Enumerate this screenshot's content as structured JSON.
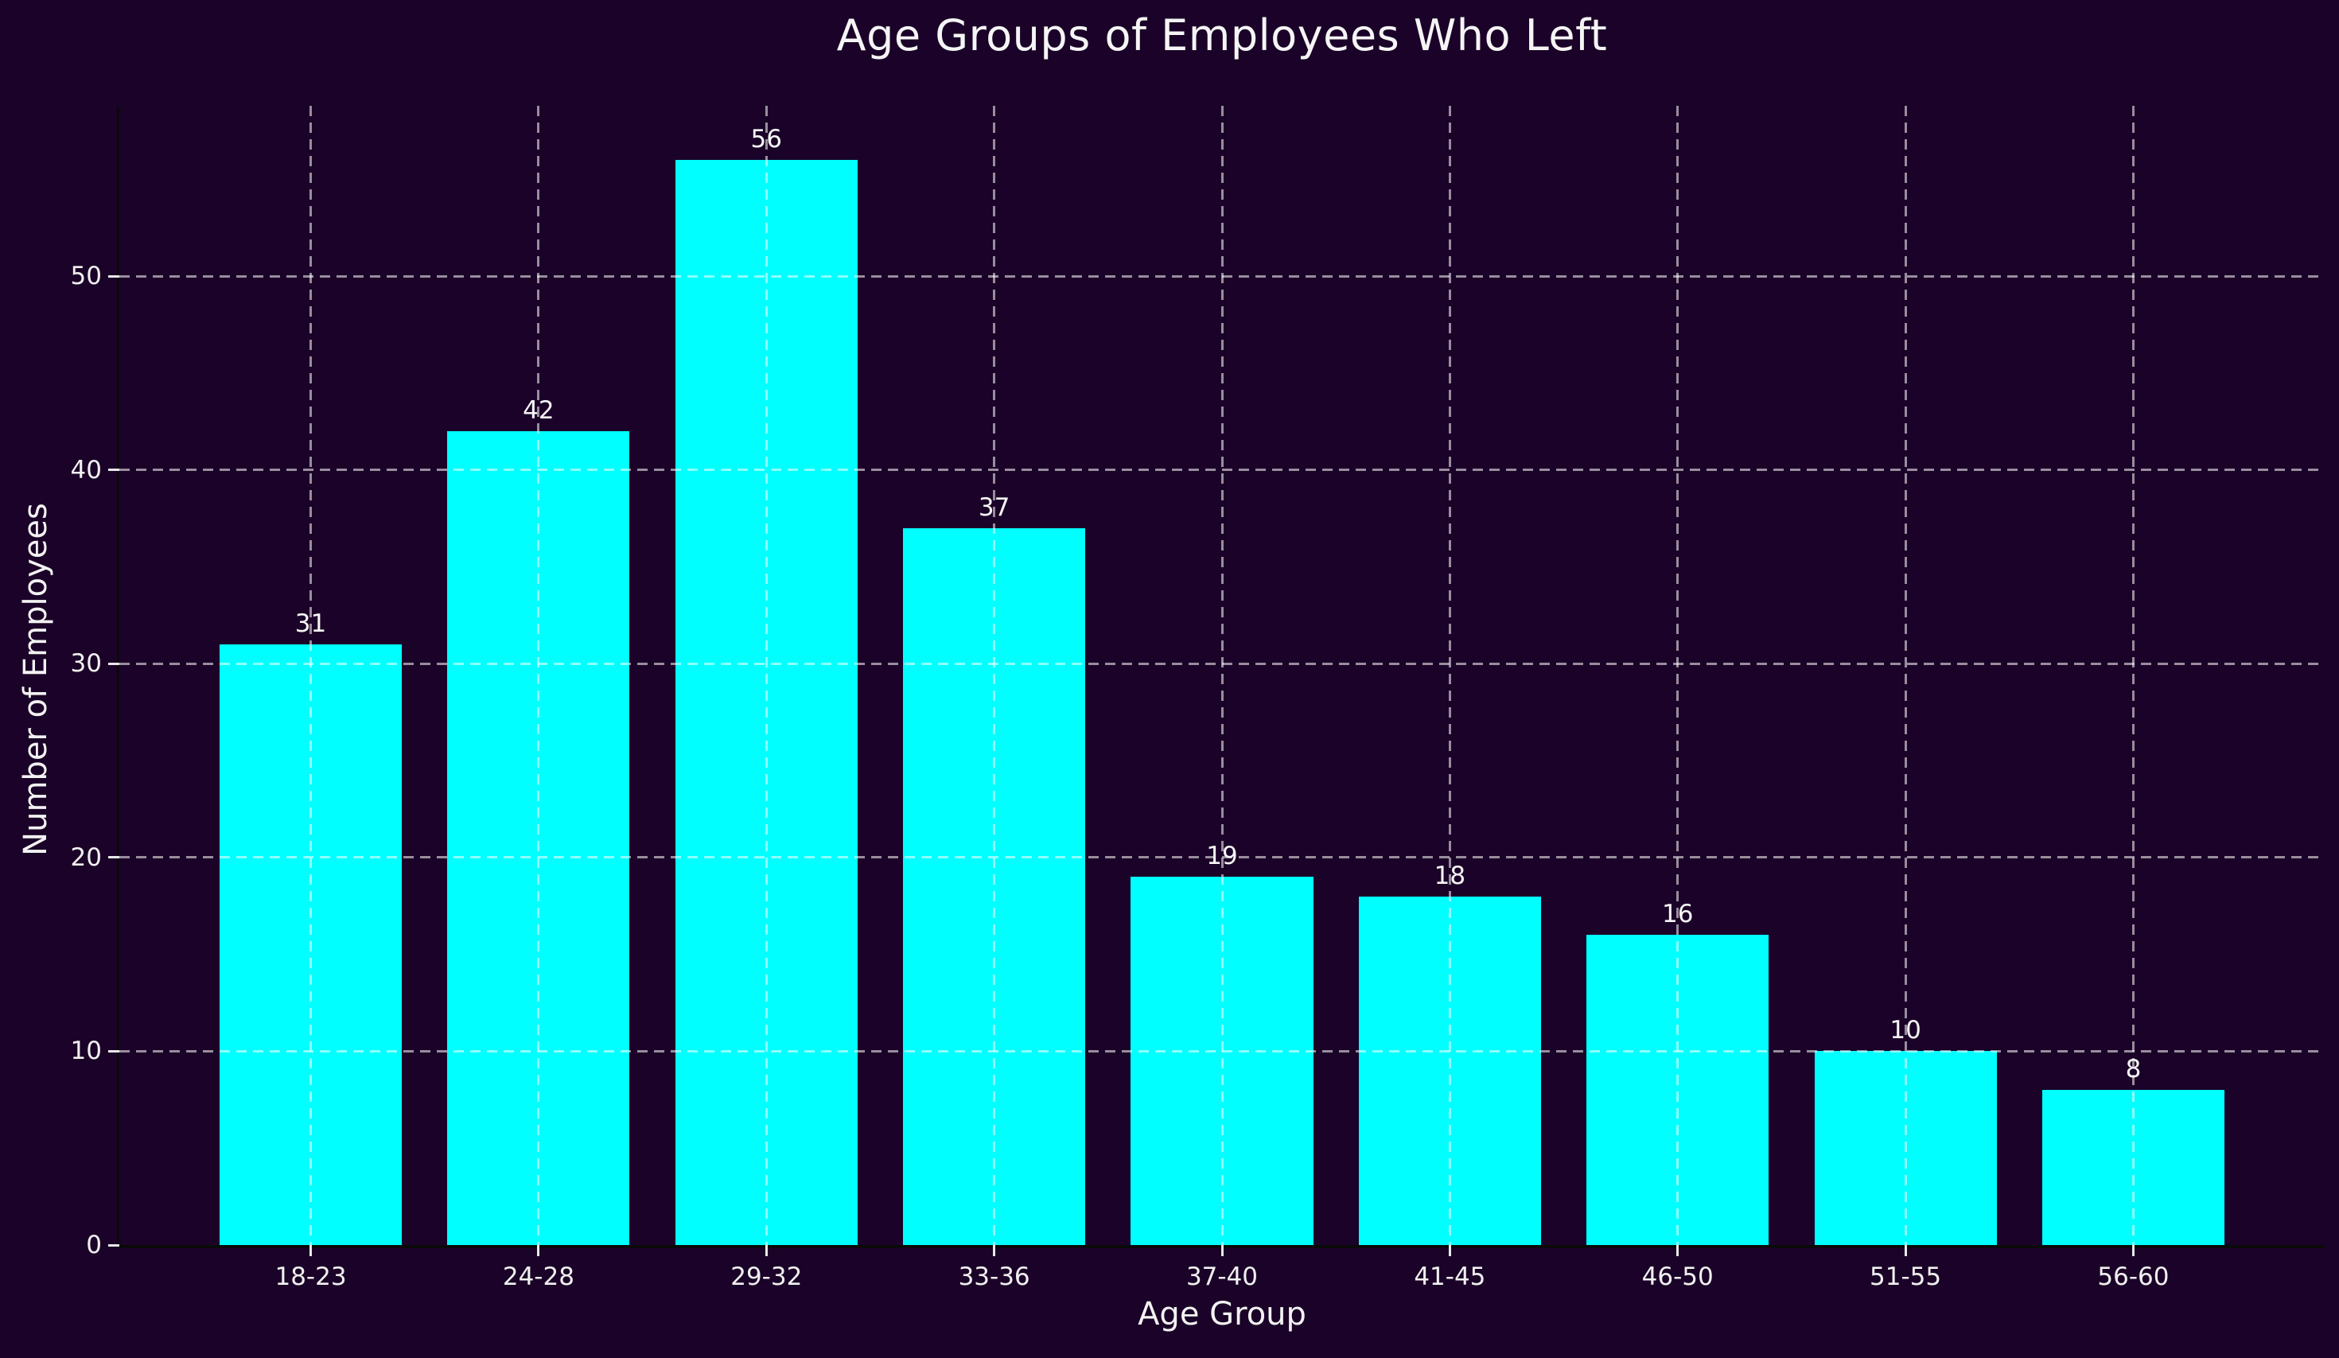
{
  "figure": {
    "background_color": "#1b0228",
    "text_color": "#f5f5f5",
    "spine_color": "#0a0a0a",
    "tick_color": "#e8e8e8"
  },
  "chart_data": {
    "type": "bar",
    "title": "Age Groups of Employees Who Left",
    "xlabel": "Age Group",
    "ylabel": "Number of Employees",
    "categories": [
      "18-23",
      "24-28",
      "29-32",
      "33-36",
      "37-40",
      "41-45",
      "46-50",
      "51-55",
      "56-60"
    ],
    "values": [
      31,
      42,
      56,
      37,
      19,
      18,
      16,
      10,
      8
    ],
    "yticks": [
      0,
      10,
      20,
      30,
      40,
      50
    ],
    "ylim": [
      0,
      58.8
    ],
    "bar_color": "#00ffff",
    "bar_width_fraction": 0.8,
    "grid": {
      "visible": true,
      "axis": "both",
      "linestyle": "dashed",
      "color": "rgba(255,255,255,0.55)",
      "above_bars": true
    },
    "legend": null,
    "value_labels_shown": true
  }
}
